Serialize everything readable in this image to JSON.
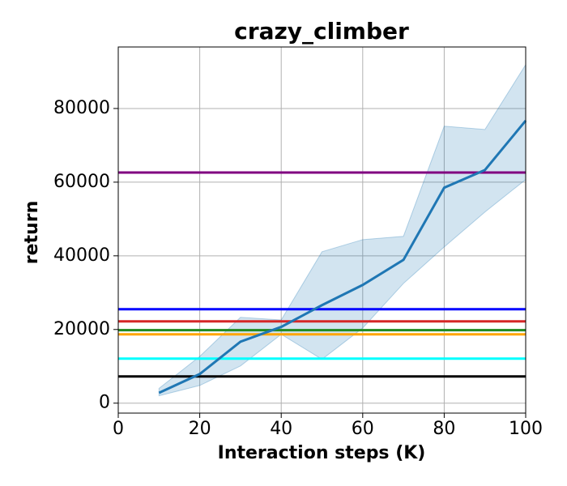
{
  "chart_data": {
    "type": "line",
    "title": "crazy_climber",
    "x_label": "Interaction steps (K)",
    "y_label": "return",
    "x": [
      10,
      20,
      30,
      40,
      50,
      60,
      70,
      80,
      90,
      100
    ],
    "series": [
      {
        "color": "#1f77b4",
        "values": [
          2800,
          7900,
          16700,
          20700,
          26600,
          32100,
          38900,
          58500,
          63300,
          76700
        ],
        "upper": [
          4000,
          12700,
          23300,
          22600,
          41100,
          44400,
          45300,
          75200,
          74300,
          91900
        ],
        "lower": [
          2000,
          4800,
          10100,
          18700,
          11900,
          20400,
          32500,
          42400,
          51900,
          60700
        ]
      }
    ],
    "hlines": [
      {
        "value": 62600,
        "color": "#800080"
      },
      {
        "value": 25500,
        "color": "#0000ff"
      },
      {
        "value": 22200,
        "color": "#d62728"
      },
      {
        "value": 19800,
        "color": "#228b22"
      },
      {
        "value": 18700,
        "color": "#ffa500"
      },
      {
        "value": 12100,
        "color": "#00ffff"
      },
      {
        "value": 7250,
        "color": "#000000"
      }
    ],
    "xlim": [
      0,
      100
    ],
    "xticks": [
      0,
      20,
      40,
      60,
      80,
      100
    ],
    "ylim": [
      -2700,
      96700
    ],
    "yticks": [
      0,
      20000,
      40000,
      60000,
      80000
    ],
    "grid": true
  }
}
